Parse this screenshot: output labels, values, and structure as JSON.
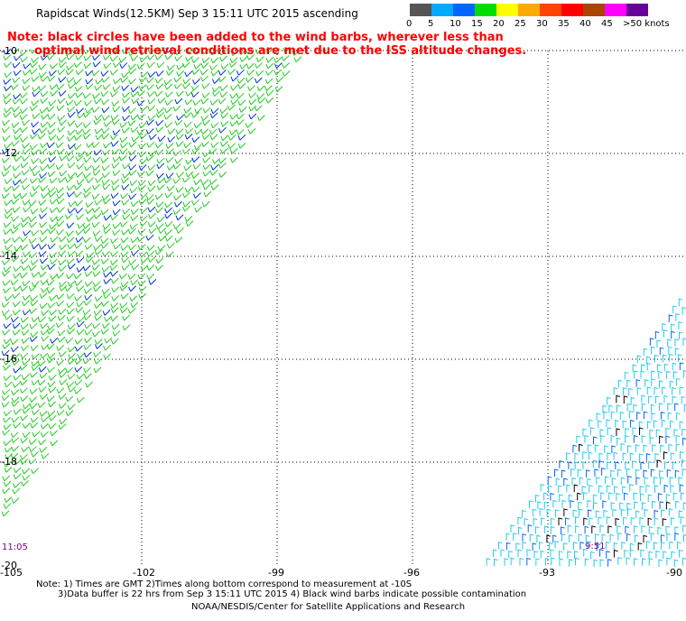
{
  "title": "Rapidscat Winds(12.5KM) Sep  3 15:11 UTC 2015 ascending",
  "note_line1": "Note: black circles have been added to the wind barbs, wherever less than",
  "note_line2": "optimal wind retrieval conditions are met due to the ISS altitude changes.",
  "legend": {
    "colors": [
      "#555555",
      "#00aaff",
      "#0066ff",
      "#00dd00",
      "#ffff00",
      "#ffaa00",
      "#ff4400",
      "#ff0000",
      "#aa4400",
      "#ff00ff",
      "#660099"
    ],
    "labels": [
      "0",
      "5",
      "10",
      "15",
      "20",
      "25",
      "30",
      "35",
      "40",
      "45",
      ">50 knots"
    ]
  },
  "lat_labels": [
    "-10",
    "-12",
    "-14",
    "-16",
    "-18",
    "-20"
  ],
  "lon_labels": [
    "-105",
    "-102",
    "-99",
    "-96",
    "-93",
    "-90"
  ],
  "time_left": "11:05",
  "time_right": "9:51",
  "footer_line1": "Note: 1) Times are GMT 2)Times along bottom correspond to measurement at -10S",
  "footer_line2": "3)Data buffer is 22 hrs from Sep  3 15:11 UTC 2015 4) Black wind barbs indicate possible contamination",
  "footer_line3": "NOAA/NESDIS/Center for Satellite Applications and Research"
}
